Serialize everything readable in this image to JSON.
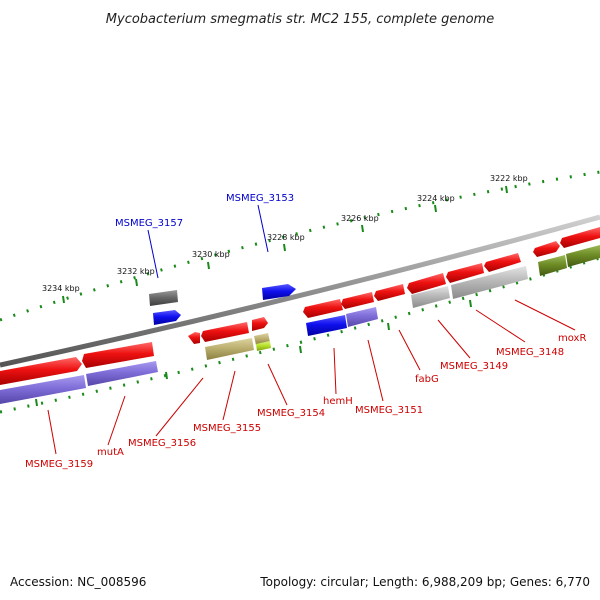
{
  "title": "Mycobacterium smegmatis str. MC2 155, complete genome",
  "footer": {
    "accession": "Accession: NC_008596",
    "summary": "Topology: circular; Length: 6,988,209 bp; Genes: 6,770"
  },
  "colors": {
    "backbone": "#8f8f8f",
    "red_gene": "#ee1111",
    "blue_gene": "#1010ee",
    "purple_gene": "#7f6ed8",
    "grey_gene": "#b8b8b8",
    "dark_grey_gene": "#6a6a6a",
    "khaki_gene": "#bdb070",
    "lime_gene": "#b8e22a",
    "olive_gene": "#6e8c26",
    "dots": "#1a8a1a",
    "red_label": "#cc0000",
    "blue_label": "#0000cc"
  },
  "ticks": [
    {
      "label": "3222 kbp"
    },
    {
      "label": "3224 kbp"
    },
    {
      "label": "3226 kbp"
    },
    {
      "label": "3228 kbp"
    },
    {
      "label": "3230 kbp"
    },
    {
      "label": "3232 kbp"
    },
    {
      "label": "3234 kbp"
    }
  ],
  "genes_top": [
    {
      "label": "MSMEG_3157"
    },
    {
      "label": "MSMEG_3153"
    }
  ],
  "genes_bottom": [
    {
      "label": "MSMEG_3159"
    },
    {
      "label": "mutA"
    },
    {
      "label": "MSMEG_3156"
    },
    {
      "label": "MSMEG_3155"
    },
    {
      "label": "MSMEG_3154"
    },
    {
      "label": "hemH"
    },
    {
      "label": "MSMEG_3151"
    },
    {
      "label": "fabG"
    },
    {
      "label": "MSMEG_3149"
    },
    {
      "label": "MSMEG_3148"
    },
    {
      "label": "moxR"
    }
  ]
}
